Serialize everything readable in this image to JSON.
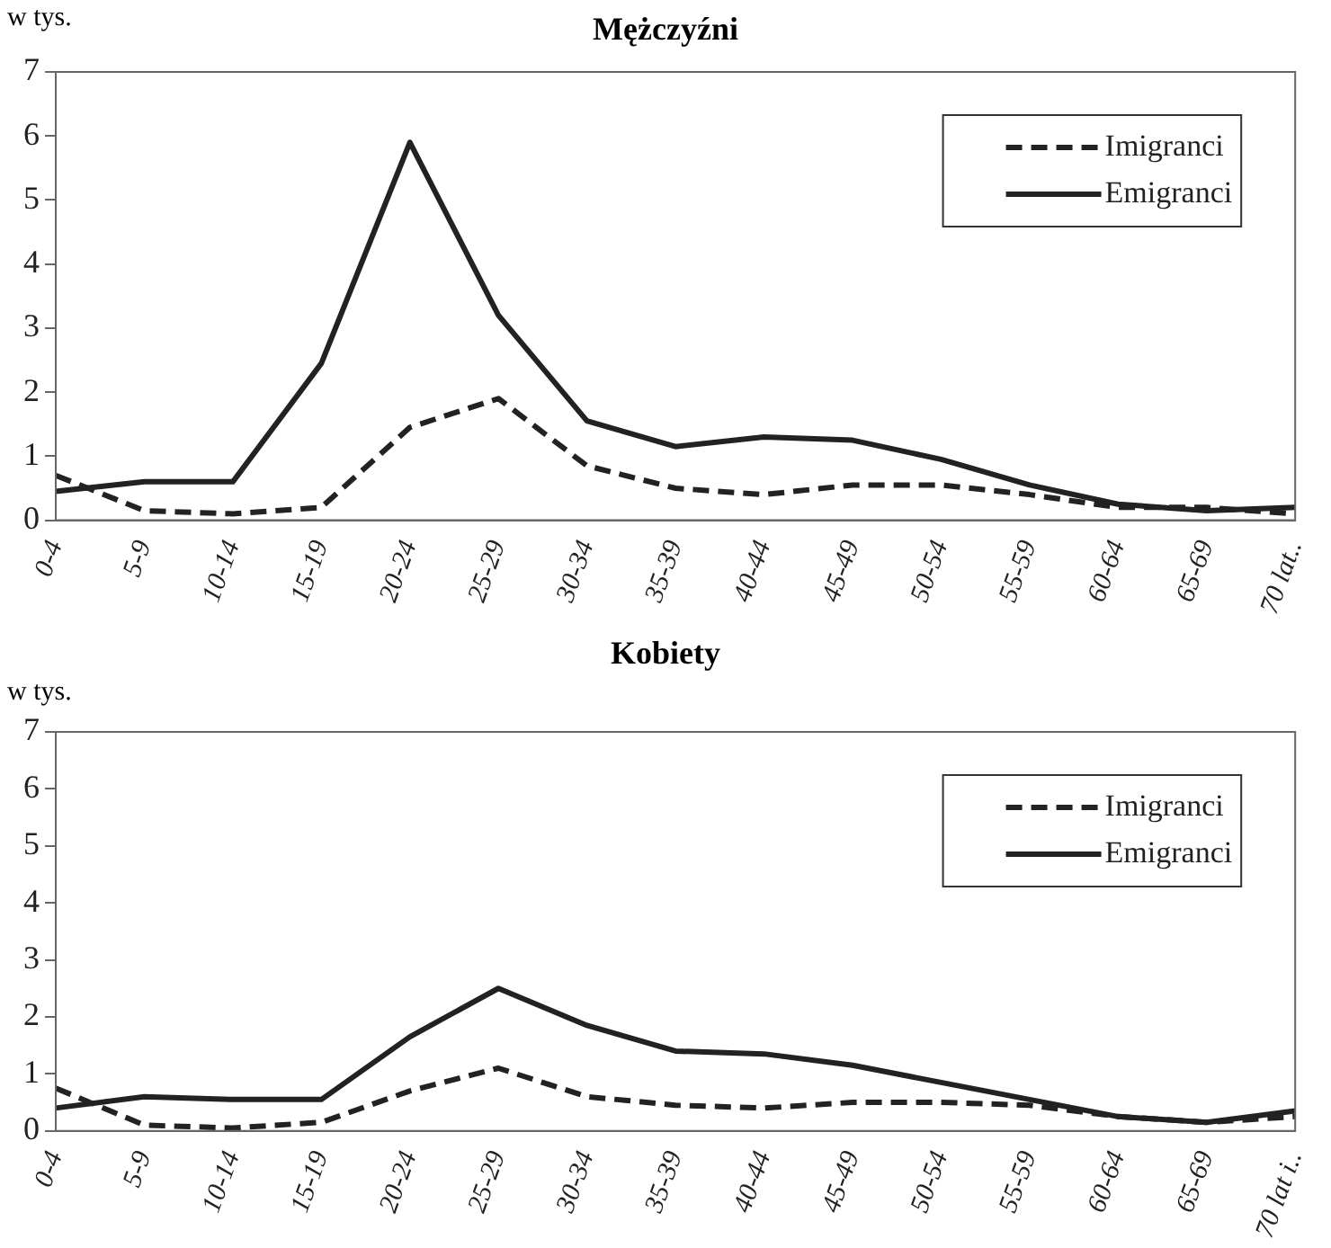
{
  "chart_data": [
    {
      "type": "line",
      "title": "Mężczyźni",
      "ylabel": "w tys.",
      "categories": [
        "0-4",
        "5-9",
        "10-14",
        "15-19",
        "20-24",
        "25-29",
        "30-34",
        "35-39",
        "40-44",
        "45-49",
        "50-54",
        "55-59",
        "60-64",
        "65-69",
        "70 lat.."
      ],
      "series": [
        {
          "name": "Imigranci",
          "color": "#222222",
          "line_style": "dashed",
          "values": [
            0.7,
            0.15,
            0.1,
            0.2,
            1.45,
            1.9,
            0.85,
            0.5,
            0.4,
            0.55,
            0.55,
            0.4,
            0.2,
            0.2,
            0.1
          ]
        },
        {
          "name": "Emigranci",
          "color": "#222222",
          "line_style": "solid",
          "values": [
            0.45,
            0.6,
            0.6,
            2.45,
            5.9,
            3.2,
            1.55,
            1.15,
            1.3,
            1.25,
            0.95,
            0.55,
            0.25,
            0.15,
            0.2
          ]
        }
      ],
      "ylim": [
        0,
        7
      ],
      "yticks": [
        0,
        1,
        2,
        3,
        4,
        5,
        6,
        7
      ],
      "grid": false,
      "legend": "top right",
      "marker": "none"
    },
    {
      "type": "line",
      "title": "Kobiety",
      "ylabel": "w tys.",
      "categories": [
        "0-4",
        "5-9",
        "10-14",
        "15-19",
        "20-24",
        "25-29",
        "30-34",
        "35-39",
        "40-44",
        "45-49",
        "50-54",
        "55-59",
        "60-64",
        "65-69",
        "70 lat i.."
      ],
      "series": [
        {
          "name": "Imigranci",
          "color": "#222222",
          "line_style": "dashed",
          "values": [
            0.75,
            0.1,
            0.05,
            0.15,
            0.7,
            1.1,
            0.6,
            0.45,
            0.4,
            0.5,
            0.5,
            0.45,
            0.25,
            0.15,
            0.25
          ]
        },
        {
          "name": "Emigranci",
          "color": "#222222",
          "line_style": "solid",
          "values": [
            0.4,
            0.6,
            0.55,
            0.55,
            1.65,
            2.5,
            1.85,
            1.4,
            1.35,
            1.15,
            0.85,
            0.55,
            0.25,
            0.15,
            0.35
          ]
        }
      ],
      "ylim": [
        0,
        7
      ],
      "yticks": [
        0,
        1,
        2,
        3,
        4,
        5,
        6,
        7
      ],
      "grid": false,
      "legend": "top right",
      "marker": "none"
    }
  ]
}
